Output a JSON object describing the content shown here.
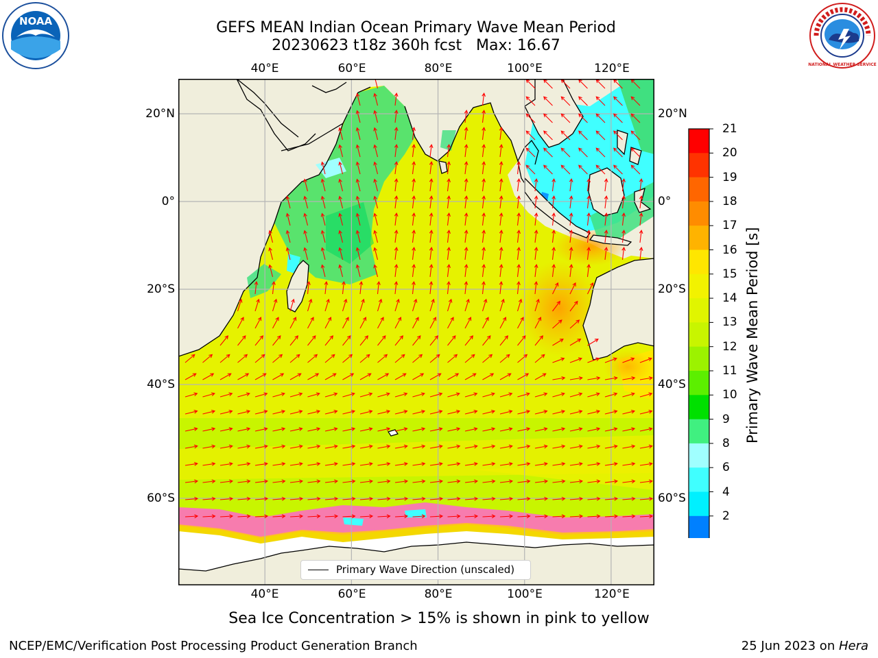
{
  "title": {
    "line1": "GEFS MEAN Indian Ocean Primary Wave Mean Period",
    "line2": "20230623 t18z 360h fcst   Max: 16.67"
  },
  "axes": {
    "lon_labels": [
      "40°E",
      "60°E",
      "80°E",
      "100°E",
      "120°E"
    ],
    "lat_labels": [
      "20°N",
      "0°",
      "20°S",
      "40°S",
      "60°S"
    ],
    "lon_values": [
      40,
      60,
      80,
      100,
      120
    ],
    "lat_values": [
      20,
      0,
      -20,
      -40,
      -60
    ],
    "extent": {
      "lon_min": 20,
      "lon_max": 130,
      "lat_min": -70,
      "lat_max": 28
    }
  },
  "colorbar": {
    "label": "Primary Wave Mean Period [s]",
    "ticks": [
      "21",
      "20",
      "19",
      "18",
      "17",
      "16",
      "15",
      "14",
      "13",
      "12",
      "11",
      "10",
      "9",
      "8",
      "6",
      "4",
      "2"
    ],
    "colors": [
      "#ff0000",
      "#ff3300",
      "#ff6600",
      "#ff8c00",
      "#ffb300",
      "#ffe600",
      "#f2f200",
      "#e0f500",
      "#c8f500",
      "#9cf200",
      "#5cef00",
      "#00e000",
      "#40f080",
      "#a0ffff",
      "#40ffff",
      "#00f0ff",
      "#0080ff"
    ],
    "extend_color": "#0000ff"
  },
  "legend": {
    "label": "Primary Wave Direction (unscaled)"
  },
  "caption": "Sea Ice Concentration > 15% is shown in pink to yellow",
  "footer": {
    "left": "NCEP/EMC/Verification Post Processing Product Generation Branch",
    "right_date": "25 Jun 2023 on ",
    "right_host": "Hera"
  },
  "logos": {
    "noaa": "NOAA",
    "nws": "NATIONAL WEATHER SERVICE"
  },
  "colors": {
    "land": "#f0eedc",
    "ocean_main": "#e6f200",
    "southern_band": "#c8f500",
    "south_yellow": "#ffe600",
    "orange_patch": "#ffb300",
    "green_patch": "#40e080",
    "cyan_patch": "#40ffff",
    "arrow": "#ff0000",
    "ice_pink": "#ff66cc",
    "ice_white": "#ffffff"
  }
}
